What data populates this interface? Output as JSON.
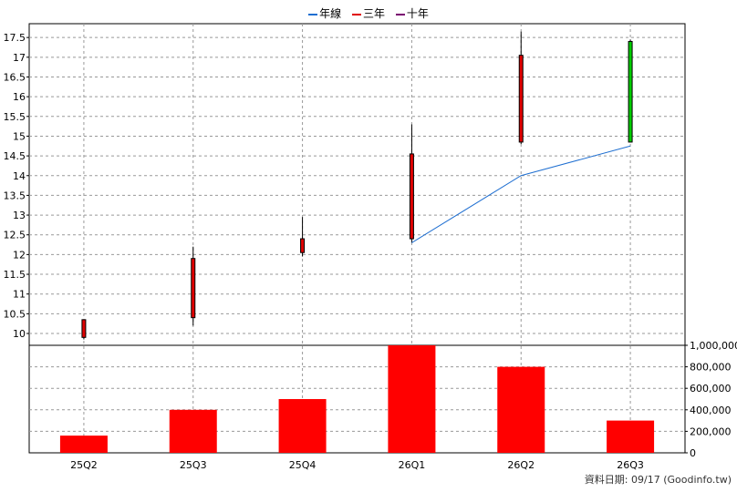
{
  "legend": [
    {
      "label": "年線",
      "color": "#1f6fd1"
    },
    {
      "label": "三年",
      "color": "#e00000"
    },
    {
      "label": "十年",
      "color": "#7a0070"
    }
  ],
  "footer": "資料日期: 09/17  (Goodinfo.tw)",
  "chart_data": [
    {
      "type": "candlestick",
      "categories": [
        "25Q2",
        "25Q3",
        "25Q4",
        "26Q1",
        "26Q2",
        "26Q3"
      ],
      "ohlc": [
        {
          "open": 9.9,
          "high": 10.35,
          "low": 9.85,
          "close": 10.35
        },
        {
          "open": 10.4,
          "high": 12.2,
          "low": 10.2,
          "close": 11.9
        },
        {
          "open": 12.05,
          "high": 12.95,
          "low": 11.95,
          "close": 12.4
        },
        {
          "open": 12.4,
          "high": 15.3,
          "low": 12.3,
          "close": 14.55
        },
        {
          "open": 14.85,
          "high": 17.65,
          "low": 14.8,
          "close": 17.05
        },
        {
          "open": 17.4,
          "high": 17.45,
          "low": 14.85,
          "close": 14.85
        }
      ],
      "candle_colors": [
        "#e00000",
        "#e00000",
        "#e00000",
        "#e00000",
        "#e00000",
        "#00cc00"
      ],
      "series": [
        {
          "name": "年線",
          "color": "#1f6fd1",
          "values": [
            null,
            null,
            null,
            12.3,
            14.0,
            14.75
          ]
        }
      ],
      "ylim": [
        9.7,
        17.85
      ],
      "yticks": [
        10,
        10.5,
        11,
        11.5,
        12,
        12.5,
        13,
        13.5,
        14,
        14.5,
        15,
        15.5,
        16,
        16.5,
        17,
        17.5
      ],
      "ytick_labels": [
        "10",
        "10.5",
        "11",
        "11.5",
        "12",
        "12.5",
        "13",
        "13.5",
        "14",
        "14.5",
        "15",
        "15.5",
        "16",
        "16.5",
        "17",
        "17.5"
      ],
      "grid": true
    },
    {
      "type": "bar",
      "categories": [
        "25Q2",
        "25Q3",
        "25Q4",
        "26Q1",
        "26Q2",
        "26Q3"
      ],
      "values": [
        160000,
        400000,
        500000,
        1000000,
        800000,
        300000
      ],
      "color": "#ff0000",
      "ylim": [
        0,
        1000000
      ],
      "yticks": [
        0,
        200000,
        400000,
        600000,
        800000,
        1000000
      ],
      "ytick_labels": [
        "0",
        "200,000",
        "400,000",
        "600,000",
        "800,000",
        "1,000,000"
      ],
      "grid": true
    }
  ]
}
